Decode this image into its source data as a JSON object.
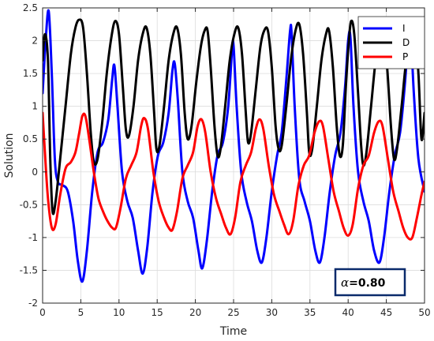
{
  "chart_data": {
    "type": "line",
    "xlabel": "Time",
    "ylabel": "Solution",
    "xlim": [
      0,
      50
    ],
    "ylim": [
      -2,
      2.5
    ],
    "xticks": [
      0,
      5,
      10,
      15,
      20,
      25,
      30,
      35,
      40,
      45,
      50
    ],
    "yticks": [
      -2,
      -1.5,
      -1,
      -0.5,
      0,
      0.5,
      1,
      1.5,
      2,
      2.5
    ],
    "xtick_labels": [
      "0",
      "5",
      "10",
      "15",
      "20",
      "25",
      "30",
      "35",
      "40",
      "45",
      "50"
    ],
    "ytick_labels": [
      "-2",
      "-1.5",
      "-1",
      "-0.5",
      "0",
      "0.5",
      "1",
      "1.5",
      "2",
      "2.5"
    ],
    "grid": true,
    "legend_position": "top-right",
    "annotation": {
      "symbol": "α",
      "text": "=0.80"
    },
    "series": [
      {
        "name": "I",
        "color": "#0000ff",
        "points": [
          [
            0,
            1.2
          ],
          [
            0.4,
            2.0
          ],
          [
            0.8,
            2.45
          ],
          [
            1.2,
            1.5
          ],
          [
            1.6,
            0.2
          ],
          [
            2.0,
            -0.15
          ],
          [
            2.6,
            -0.2
          ],
          [
            3.3,
            -0.3
          ],
          [
            4.0,
            -0.75
          ],
          [
            4.6,
            -1.35
          ],
          [
            5.2,
            -1.67
          ],
          [
            5.8,
            -1.2
          ],
          [
            6.5,
            -0.3
          ],
          [
            7.2,
            0.3
          ],
          [
            7.9,
            0.45
          ],
          [
            8.6,
            0.8
          ],
          [
            9.1,
            1.4
          ],
          [
            9.4,
            1.62
          ],
          [
            9.8,
            1.0
          ],
          [
            10.4,
            0.0
          ],
          [
            11.1,
            -0.45
          ],
          [
            11.8,
            -0.7
          ],
          [
            12.5,
            -1.2
          ],
          [
            13.1,
            -1.55
          ],
          [
            13.7,
            -1.15
          ],
          [
            14.4,
            -0.3
          ],
          [
            15.1,
            0.25
          ],
          [
            15.8,
            0.45
          ],
          [
            16.5,
            0.9
          ],
          [
            17.0,
            1.55
          ],
          [
            17.3,
            1.65
          ],
          [
            17.7,
            1.1
          ],
          [
            18.3,
            0.0
          ],
          [
            19.0,
            -0.45
          ],
          [
            19.7,
            -0.7
          ],
          [
            20.4,
            -1.2
          ],
          [
            20.9,
            -1.47
          ],
          [
            21.5,
            -1.05
          ],
          [
            22.2,
            -0.3
          ],
          [
            22.9,
            0.25
          ],
          [
            23.6,
            0.45
          ],
          [
            24.3,
            1.0
          ],
          [
            24.8,
            1.85
          ],
          [
            25.0,
            1.92
          ],
          [
            25.4,
            1.0
          ],
          [
            26.0,
            0.0
          ],
          [
            26.7,
            -0.45
          ],
          [
            27.4,
            -0.75
          ],
          [
            28.1,
            -1.2
          ],
          [
            28.7,
            -1.38
          ],
          [
            29.3,
            -1.0
          ],
          [
            30.0,
            -0.3
          ],
          [
            30.7,
            0.25
          ],
          [
            31.3,
            0.6
          ],
          [
            31.9,
            1.4
          ],
          [
            32.4,
            2.15
          ],
          [
            32.6,
            2.1
          ],
          [
            33.0,
            1.0
          ],
          [
            33.6,
            -0.1
          ],
          [
            34.3,
            -0.45
          ],
          [
            35.0,
            -0.75
          ],
          [
            35.7,
            -1.2
          ],
          [
            36.3,
            -1.38
          ],
          [
            36.9,
            -1.0
          ],
          [
            37.6,
            -0.3
          ],
          [
            38.3,
            0.25
          ],
          [
            39.0,
            0.6
          ],
          [
            39.6,
            1.3
          ],
          [
            40.0,
            2.0
          ],
          [
            40.3,
            2.05
          ],
          [
            40.7,
            1.0
          ],
          [
            41.3,
            0.0
          ],
          [
            42.0,
            -0.45
          ],
          [
            42.7,
            -0.75
          ],
          [
            43.4,
            -1.2
          ],
          [
            44.1,
            -1.38
          ],
          [
            44.7,
            -1.0
          ],
          [
            45.4,
            -0.3
          ],
          [
            46.1,
            0.25
          ],
          [
            46.8,
            0.6
          ],
          [
            47.4,
            1.3
          ],
          [
            47.9,
            2.05
          ],
          [
            48.2,
            2.1
          ],
          [
            48.6,
            1.2
          ],
          [
            49.2,
            0.2
          ],
          [
            50.0,
            -0.3
          ]
        ]
      },
      {
        "name": "D",
        "color": "#000000",
        "points": [
          [
            0,
            1.7
          ],
          [
            0.3,
            2.1
          ],
          [
            0.7,
            1.7
          ],
          [
            1.0,
            0.2
          ],
          [
            1.3,
            -0.6
          ],
          [
            1.7,
            -0.45
          ],
          [
            2.3,
            0.2
          ],
          [
            3.0,
            1.0
          ],
          [
            3.7,
            1.8
          ],
          [
            4.3,
            2.2
          ],
          [
            4.8,
            2.32
          ],
          [
            5.3,
            2.2
          ],
          [
            5.8,
            1.5
          ],
          [
            6.3,
            0.6
          ],
          [
            6.7,
            0.15
          ],
          [
            7.2,
            0.2
          ],
          [
            7.8,
            0.75
          ],
          [
            8.4,
            1.5
          ],
          [
            9.0,
            2.05
          ],
          [
            9.5,
            2.3
          ],
          [
            10.0,
            2.1
          ],
          [
            10.5,
            1.3
          ],
          [
            10.9,
            0.65
          ],
          [
            11.3,
            0.55
          ],
          [
            11.9,
            1.0
          ],
          [
            12.5,
            1.7
          ],
          [
            13.1,
            2.1
          ],
          [
            13.6,
            2.2
          ],
          [
            14.1,
            1.8
          ],
          [
            14.6,
            0.9
          ],
          [
            14.9,
            0.35
          ],
          [
            15.3,
            0.4
          ],
          [
            15.9,
            1.0
          ],
          [
            16.5,
            1.7
          ],
          [
            17.1,
            2.1
          ],
          [
            17.6,
            2.2
          ],
          [
            18.1,
            1.8
          ],
          [
            18.6,
            0.9
          ],
          [
            19.0,
            0.5
          ],
          [
            19.5,
            0.7
          ],
          [
            20.1,
            1.35
          ],
          [
            20.7,
            1.9
          ],
          [
            21.2,
            2.15
          ],
          [
            21.6,
            2.15
          ],
          [
            22.0,
            1.6
          ],
          [
            22.5,
            0.7
          ],
          [
            22.9,
            0.25
          ],
          [
            23.3,
            0.35
          ],
          [
            23.9,
            1.0
          ],
          [
            24.5,
            1.7
          ],
          [
            25.1,
            2.1
          ],
          [
            25.6,
            2.2
          ],
          [
            26.1,
            1.8
          ],
          [
            26.6,
            0.9
          ],
          [
            26.9,
            0.45
          ],
          [
            27.3,
            0.6
          ],
          [
            27.9,
            1.25
          ],
          [
            28.5,
            1.9
          ],
          [
            29.0,
            2.15
          ],
          [
            29.5,
            2.15
          ],
          [
            30.0,
            1.6
          ],
          [
            30.5,
            0.7
          ],
          [
            30.9,
            0.35
          ],
          [
            31.3,
            0.4
          ],
          [
            31.9,
            1.0
          ],
          [
            32.5,
            1.7
          ],
          [
            33.1,
            2.15
          ],
          [
            33.6,
            2.25
          ],
          [
            34.1,
            1.8
          ],
          [
            34.6,
            0.9
          ],
          [
            34.9,
            0.3
          ],
          [
            35.3,
            0.35
          ],
          [
            35.9,
            1.0
          ],
          [
            36.5,
            1.7
          ],
          [
            37.1,
            2.1
          ],
          [
            37.5,
            2.15
          ],
          [
            38.0,
            1.6
          ],
          [
            38.5,
            0.7
          ],
          [
            38.9,
            0.25
          ],
          [
            39.3,
            0.4
          ],
          [
            39.7,
            1.3
          ],
          [
            40.1,
            2.0
          ],
          [
            40.4,
            2.3
          ],
          [
            40.8,
            2.1
          ],
          [
            41.3,
            1.2
          ],
          [
            41.7,
            0.4
          ],
          [
            42.0,
            0.1
          ],
          [
            42.4,
            0.3
          ],
          [
            43.0,
            1.0
          ],
          [
            43.6,
            1.7
          ],
          [
            44.2,
            2.1
          ],
          [
            44.6,
            2.15
          ],
          [
            45.1,
            1.6
          ],
          [
            45.6,
            0.7
          ],
          [
            46.0,
            0.2
          ],
          [
            46.4,
            0.35
          ],
          [
            47.0,
            1.0
          ],
          [
            47.6,
            1.7
          ],
          [
            48.2,
            2.1
          ],
          [
            48.7,
            2.2
          ],
          [
            49.2,
            1.5
          ],
          [
            49.6,
            0.5
          ],
          [
            50.0,
            0.9
          ]
        ]
      },
      {
        "name": "P",
        "color": "#ff0000",
        "points": [
          [
            0,
            0.9
          ],
          [
            0.3,
            0.3
          ],
          [
            0.7,
            -0.4
          ],
          [
            1.2,
            -0.85
          ],
          [
            1.7,
            -0.8
          ],
          [
            2.3,
            -0.35
          ],
          [
            3.0,
            0.05
          ],
          [
            3.7,
            0.15
          ],
          [
            4.3,
            0.3
          ],
          [
            4.8,
            0.6
          ],
          [
            5.2,
            0.85
          ],
          [
            5.6,
            0.85
          ],
          [
            6.1,
            0.5
          ],
          [
            6.7,
            0.0
          ],
          [
            7.3,
            -0.4
          ],
          [
            7.9,
            -0.6
          ],
          [
            8.5,
            -0.75
          ],
          [
            9.1,
            -0.85
          ],
          [
            9.6,
            -0.85
          ],
          [
            10.2,
            -0.55
          ],
          [
            10.9,
            -0.1
          ],
          [
            11.6,
            0.1
          ],
          [
            12.3,
            0.3
          ],
          [
            12.9,
            0.7
          ],
          [
            13.3,
            0.82
          ],
          [
            13.8,
            0.65
          ],
          [
            14.5,
            0.0
          ],
          [
            15.2,
            -0.45
          ],
          [
            15.9,
            -0.7
          ],
          [
            16.5,
            -0.85
          ],
          [
            17.0,
            -0.88
          ],
          [
            17.6,
            -0.6
          ],
          [
            18.3,
            -0.1
          ],
          [
            19.0,
            0.1
          ],
          [
            19.7,
            0.3
          ],
          [
            20.3,
            0.7
          ],
          [
            20.8,
            0.8
          ],
          [
            21.3,
            0.6
          ],
          [
            22.0,
            0.0
          ],
          [
            22.7,
            -0.4
          ],
          [
            23.4,
            -0.65
          ],
          [
            24.0,
            -0.85
          ],
          [
            24.6,
            -0.95
          ],
          [
            25.2,
            -0.7
          ],
          [
            25.9,
            -0.15
          ],
          [
            26.6,
            0.1
          ],
          [
            27.3,
            0.3
          ],
          [
            27.9,
            0.65
          ],
          [
            28.4,
            0.8
          ],
          [
            28.9,
            0.65
          ],
          [
            29.6,
            0.1
          ],
          [
            30.3,
            -0.35
          ],
          [
            31.0,
            -0.6
          ],
          [
            31.6,
            -0.8
          ],
          [
            32.2,
            -0.95
          ],
          [
            32.8,
            -0.75
          ],
          [
            33.5,
            -0.2
          ],
          [
            34.2,
            0.1
          ],
          [
            34.9,
            0.25
          ],
          [
            35.6,
            0.6
          ],
          [
            36.2,
            0.77
          ],
          [
            36.7,
            0.7
          ],
          [
            37.4,
            0.2
          ],
          [
            38.1,
            -0.3
          ],
          [
            38.8,
            -0.6
          ],
          [
            39.4,
            -0.85
          ],
          [
            40.0,
            -0.97
          ],
          [
            40.6,
            -0.8
          ],
          [
            41.3,
            -0.25
          ],
          [
            42.0,
            0.1
          ],
          [
            42.7,
            0.25
          ],
          [
            43.4,
            0.6
          ],
          [
            44.0,
            0.77
          ],
          [
            44.5,
            0.7
          ],
          [
            45.2,
            0.2
          ],
          [
            45.9,
            -0.3
          ],
          [
            46.6,
            -0.6
          ],
          [
            47.2,
            -0.85
          ],
          [
            47.8,
            -1.0
          ],
          [
            48.4,
            -1.0
          ],
          [
            49.0,
            -0.7
          ],
          [
            49.6,
            -0.35
          ],
          [
            50.0,
            -0.15
          ]
        ]
      }
    ]
  }
}
